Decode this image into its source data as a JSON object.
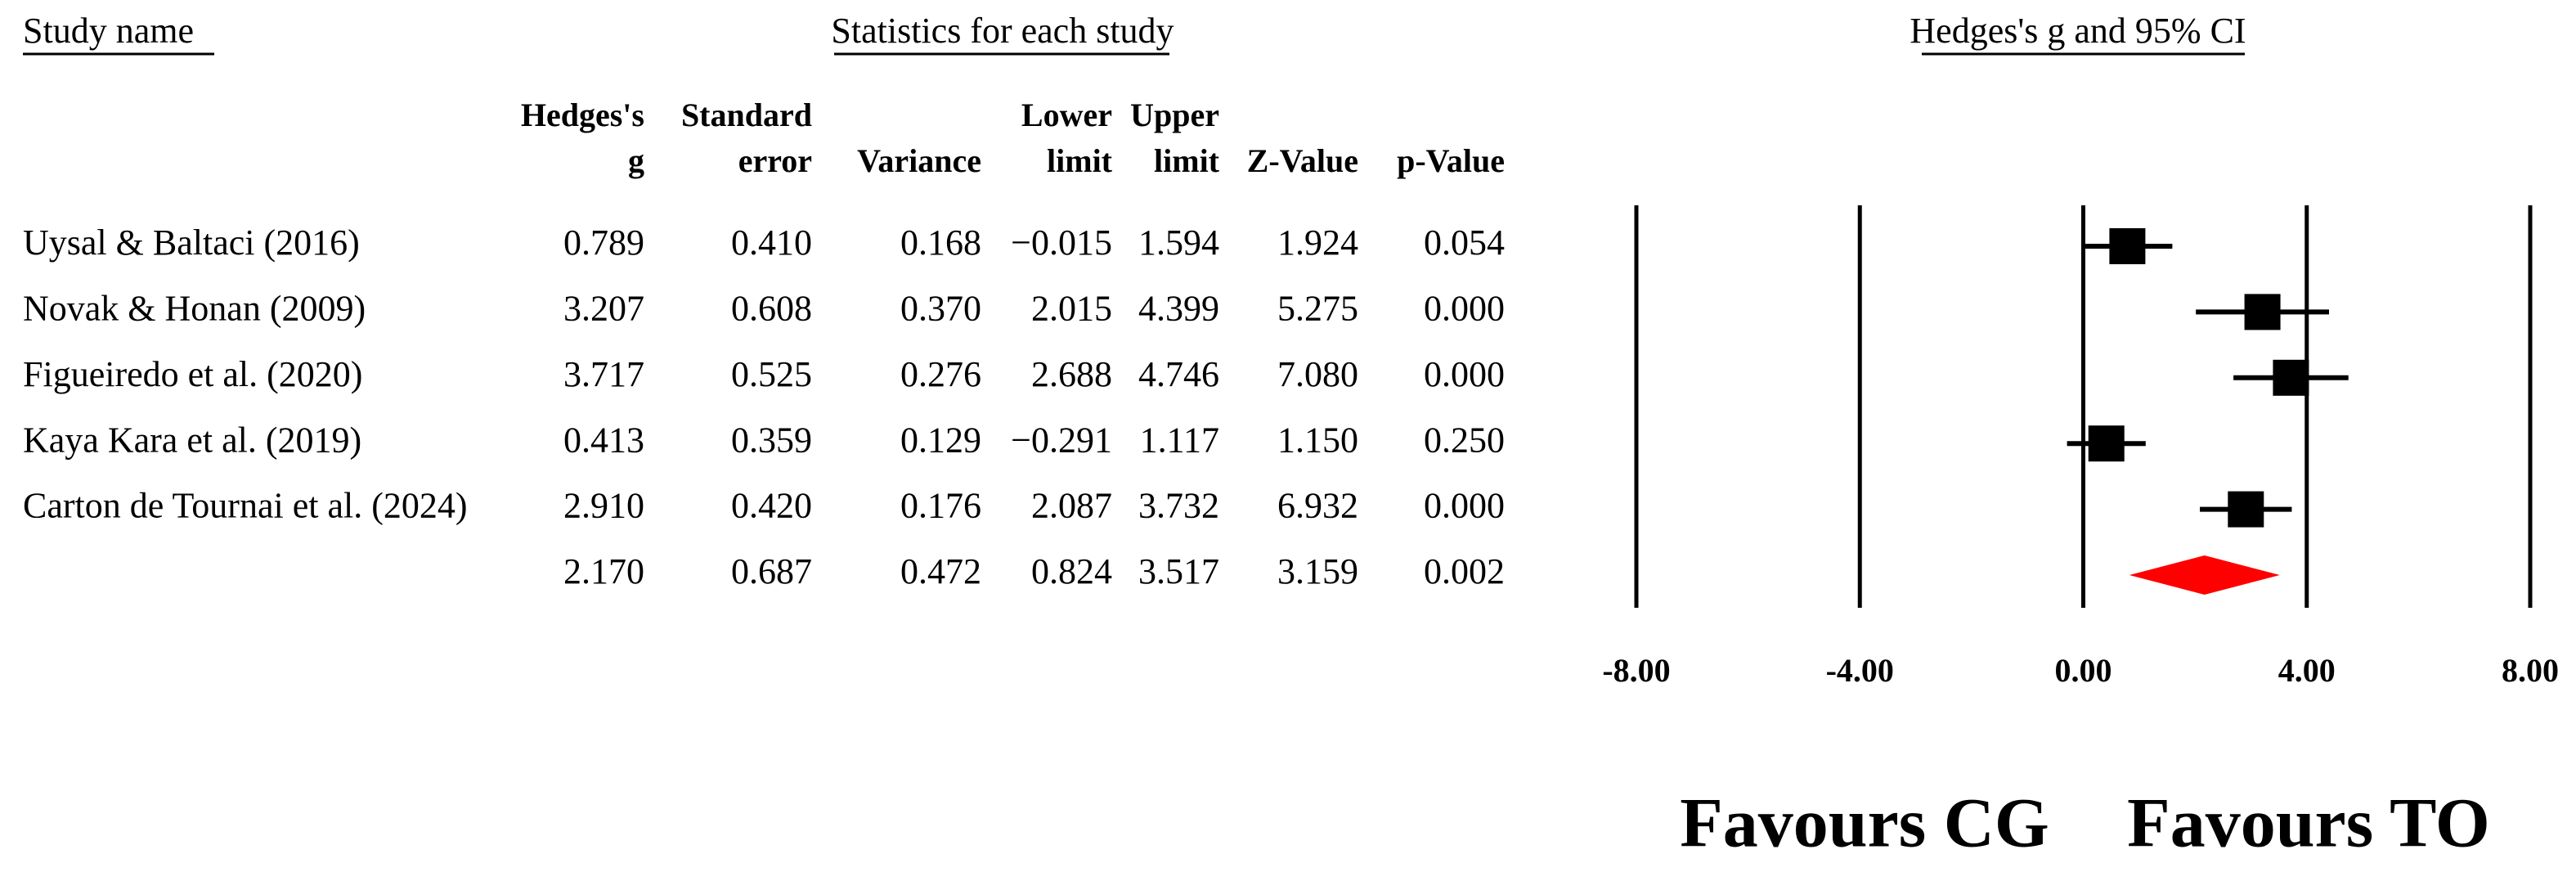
{
  "chart_data": {
    "type": "forest",
    "study_header": "Study name",
    "stats_header": "Statistics for each study",
    "plot_header": "Hedges's g and 95% CI",
    "categories": [
      "Uysal & Baltaci (2016)",
      "Novak & Honan (2009)",
      "Figueiredo et al. (2020)",
      "Kaya Kara et al. (2019)",
      "Carton de Tournai et al. (2024)",
      null
    ],
    "columns": [
      {
        "header": [
          "Hedges's",
          "g"
        ],
        "values": [
          0.789,
          3.207,
          3.717,
          0.413,
          2.91,
          2.17
        ],
        "value_labels": [
          "0.789",
          "3.207",
          "3.717",
          "0.413",
          "2.910",
          "2.170"
        ]
      },
      {
        "header": [
          "Standard",
          "error"
        ],
        "values": [
          0.41,
          0.608,
          0.525,
          0.359,
          0.42,
          0.687
        ],
        "value_labels": [
          "0.410",
          "0.608",
          "0.525",
          "0.359",
          "0.420",
          "0.687"
        ]
      },
      {
        "header": [
          "Variance"
        ],
        "values": [
          0.168,
          0.37,
          0.276,
          0.129,
          0.176,
          0.472
        ],
        "value_labels": [
          "0.168",
          "0.370",
          "0.276",
          "0.129",
          "0.176",
          "0.472"
        ]
      },
      {
        "header": [
          "Lower",
          "limit"
        ],
        "values": [
          -0.015,
          2.015,
          2.688,
          -0.291,
          2.087,
          0.824
        ],
        "value_labels": [
          "−0.015",
          "2.015",
          "2.688",
          "−0.291",
          "2.087",
          "0.824"
        ]
      },
      {
        "header": [
          "Upper",
          "limit"
        ],
        "values": [
          1.594,
          4.399,
          4.746,
          1.117,
          3.732,
          3.517
        ],
        "value_labels": [
          "1.594",
          "4.399",
          "4.746",
          "1.117",
          "3.732",
          "3.517"
        ]
      },
      {
        "header": [
          "Z-Value"
        ],
        "values": [
          1.924,
          5.275,
          7.08,
          1.15,
          6.932,
          3.159
        ],
        "value_labels": [
          "1.924",
          "5.275",
          "7.080",
          "1.150",
          "6.932",
          "3.159"
        ]
      },
      {
        "header": [
          "p-Value"
        ],
        "values": [
          0.054,
          0.0,
          0.0,
          0.25,
          0.0,
          0.002
        ],
        "value_labels": [
          "0.054",
          "0.000",
          "0.000",
          "0.250",
          "0.000",
          "0.002"
        ]
      }
    ],
    "xlim": [
      -8,
      8
    ],
    "xticks": [
      {
        "value": -8,
        "label": "-8.00"
      },
      {
        "value": -4,
        "label": "-4.00"
      },
      {
        "value": 0,
        "label": "0.00"
      },
      {
        "value": 4,
        "label": "4.00"
      },
      {
        "value": 8,
        "label": "8.00"
      }
    ],
    "grid": true,
    "color": "#000000",
    "summary_color": "#ff0000",
    "favours_left": "Favours CG",
    "favours_right": "Favours TO"
  }
}
